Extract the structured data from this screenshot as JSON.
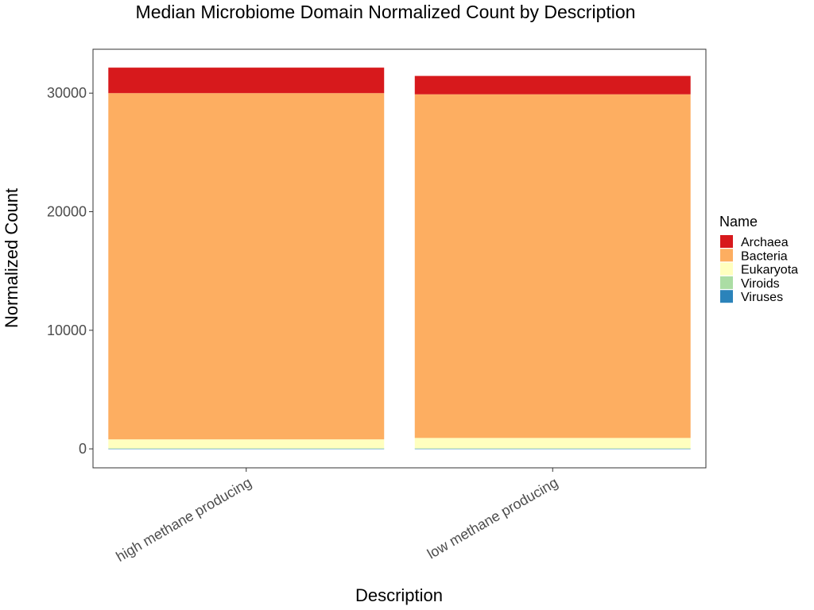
{
  "chart_data": {
    "type": "bar",
    "stacked": true,
    "title": "Median Microbiome Domain Normalized Count by Description",
    "xlabel": "Description",
    "ylabel": "Normalized Count",
    "categories": [
      "high methane producing",
      "low methane producing"
    ],
    "series": [
      {
        "name": "Viruses",
        "color": "#2b83ba",
        "values": [
          20,
          20
        ]
      },
      {
        "name": "Viroids",
        "color": "#abdda4",
        "values": [
          30,
          30
        ]
      },
      {
        "name": "Eukaryota",
        "color": "#ffffbf",
        "values": [
          750,
          870
        ]
      },
      {
        "name": "Bacteria",
        "color": "#fdae61",
        "values": [
          29200,
          28980
        ]
      },
      {
        "name": "Archaea",
        "color": "#d7191c",
        "values": [
          2150,
          1550
        ]
      }
    ],
    "legend_title": "Name",
    "legend_order": [
      "Archaea",
      "Bacteria",
      "Eukaryota",
      "Viroids",
      "Viruses"
    ],
    "legend_position": "right",
    "yticks": [
      0,
      10000,
      20000,
      30000
    ],
    "ylim": [
      -1600,
      33700
    ],
    "grid": false
  }
}
